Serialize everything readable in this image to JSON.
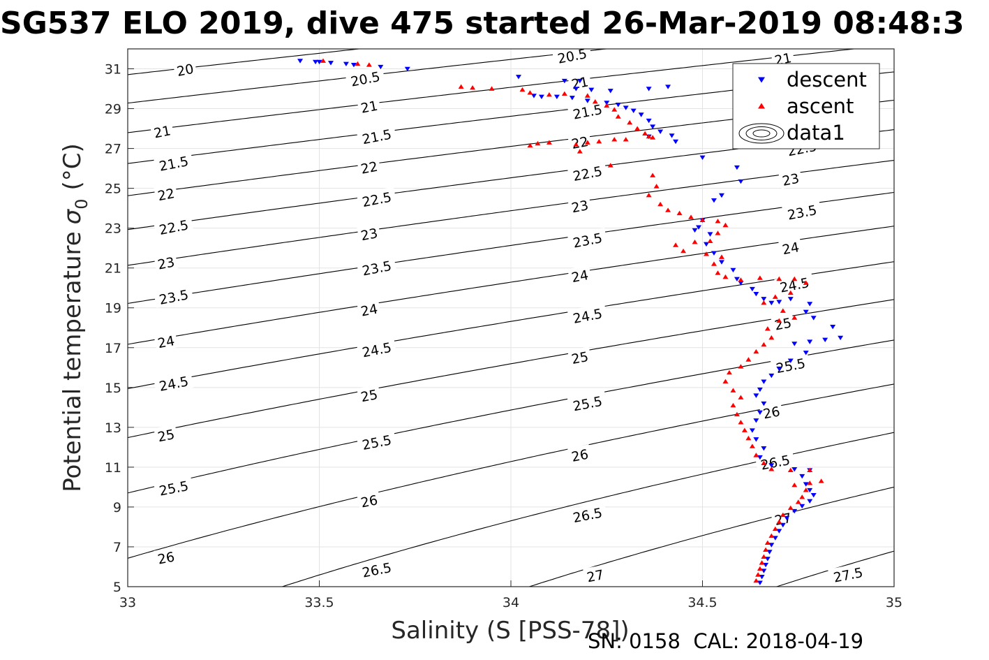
{
  "chart_data": {
    "type": "scatter",
    "title": "SG537 ELO 2019, dive 475 started 26-Mar-2019 08:48:3",
    "xlabel": "Salinity (S [PSS-78])",
    "ylabel": "Potential temperature",
    "ylabel_symbol": "σ",
    "ylabel_subscript": "0",
    "ylabel_unit": "(°C)",
    "footer": "SN: 0158  CAL: 2018-04-19",
    "xlim": [
      33,
      35
    ],
    "ylim": [
      5,
      32
    ],
    "x_ticks": [
      33,
      33.5,
      34,
      34.5,
      35
    ],
    "x_tick_labels": [
      "33",
      "33.5",
      "34",
      "34.5",
      "35"
    ],
    "y_ticks": [
      5,
      7,
      9,
      11,
      13,
      15,
      17,
      19,
      21,
      23,
      25,
      27,
      29,
      31
    ],
    "y_tick_labels": [
      "5",
      "7",
      "9",
      "11",
      "13",
      "15",
      "17",
      "19",
      "21",
      "23",
      "25",
      "27",
      "29",
      "31"
    ],
    "grid": true,
    "legend": {
      "placement": "top-right",
      "entries": [
        {
          "name": "descent",
          "marker": "triangle-down",
          "color": "#0000ff"
        },
        {
          "name": "ascent",
          "marker": "triangle-up",
          "color": "#ff0000"
        },
        {
          "name": "data1",
          "marker": "contour",
          "color": "#000000"
        }
      ]
    },
    "contours": {
      "levels": [
        20,
        20.5,
        21,
        21.5,
        22,
        22.5,
        23,
        23.5,
        24,
        24.5,
        25,
        25.5,
        26,
        26.5,
        27,
        27.5
      ],
      "level_labels": [
        "20",
        "20.5",
        "21",
        "21.5",
        "22",
        "22.5",
        "23",
        "23.5",
        "24",
        "24.5",
        "25",
        "25.5",
        "26",
        "26.5",
        "27",
        "27.5"
      ],
      "label_positions": [
        {
          "level": "20",
          "s": 33.15,
          "t": 30.95
        },
        {
          "level": "21",
          "s": 33.09,
          "t": 27.85
        },
        {
          "level": "21.5",
          "s": 33.12,
          "t": 26.25
        },
        {
          "level": "22",
          "s": 33.1,
          "t": 24.7
        },
        {
          "level": "22.5",
          "s": 33.12,
          "t": 23.05
        },
        {
          "level": "23",
          "s": 33.1,
          "t": 21.25
        },
        {
          "level": "23.5",
          "s": 33.12,
          "t": 19.55
        },
        {
          "level": "24",
          "s": 33.1,
          "t": 17.3
        },
        {
          "level": "24.5",
          "s": 33.12,
          "t": 15.2
        },
        {
          "level": "25",
          "s": 33.1,
          "t": 12.6
        },
        {
          "level": "25.5",
          "s": 33.12,
          "t": 9.95
        },
        {
          "level": "26",
          "s": 33.1,
          "t": 6.45
        },
        {
          "level": "20.5",
          "s": 33.62,
          "t": 30.5
        },
        {
          "level": "21",
          "s": 33.63,
          "t": 29.1
        },
        {
          "level": "21.5",
          "s": 33.65,
          "t": 27.6
        },
        {
          "level": "22",
          "s": 33.63,
          "t": 26.05
        },
        {
          "level": "22.5",
          "s": 33.65,
          "t": 24.45
        },
        {
          "level": "23",
          "s": 33.63,
          "t": 22.7
        },
        {
          "level": "23.5",
          "s": 33.65,
          "t": 21.0
        },
        {
          "level": "24",
          "s": 33.63,
          "t": 18.9
        },
        {
          "level": "24.5",
          "s": 33.65,
          "t": 16.9
        },
        {
          "level": "25",
          "s": 33.63,
          "t": 14.6
        },
        {
          "level": "25.5",
          "s": 33.65,
          "t": 12.25
        },
        {
          "level": "26",
          "s": 33.63,
          "t": 9.3
        },
        {
          "level": "26.5",
          "s": 33.65,
          "t": 5.85
        },
        {
          "level": "20.5",
          "s": 34.16,
          "t": 31.65
        },
        {
          "level": "21",
          "s": 34.18,
          "t": 30.3
        },
        {
          "level": "21.5",
          "s": 34.2,
          "t": 28.85
        },
        {
          "level": "22",
          "s": 34.18,
          "t": 27.3
        },
        {
          "level": "22.5",
          "s": 34.2,
          "t": 25.75
        },
        {
          "level": "23",
          "s": 34.18,
          "t": 24.1
        },
        {
          "level": "23.5",
          "s": 34.2,
          "t": 22.4
        },
        {
          "level": "24",
          "s": 34.18,
          "t": 20.6
        },
        {
          "level": "24.5",
          "s": 34.2,
          "t": 18.6
        },
        {
          "level": "25",
          "s": 34.18,
          "t": 16.5
        },
        {
          "level": "25.5",
          "s": 34.2,
          "t": 14.2
        },
        {
          "level": "26",
          "s": 34.18,
          "t": 11.6
        },
        {
          "level": "26.5",
          "s": 34.2,
          "t": 8.6
        },
        {
          "level": "27",
          "s": 34.22,
          "t": 5.55
        },
        {
          "level": "21",
          "s": 34.71,
          "t": 31.5
        },
        {
          "level": "22.5",
          "s": 34.76,
          "t": 27.0
        },
        {
          "level": "23",
          "s": 34.73,
          "t": 25.45
        },
        {
          "level": "23.5",
          "s": 34.76,
          "t": 23.8
        },
        {
          "level": "24",
          "s": 34.73,
          "t": 22.0
        },
        {
          "level": "24.5",
          "s": 34.74,
          "t": 20.15
        },
        {
          "level": "25",
          "s": 34.71,
          "t": 18.2
        },
        {
          "level": "25.5",
          "s": 34.73,
          "t": 16.1
        },
        {
          "level": "26",
          "s": 34.68,
          "t": 13.75
        },
        {
          "level": "26.5",
          "s": 34.69,
          "t": 11.25
        },
        {
          "level": "27",
          "s": 34.71,
          "t": 8.4
        },
        {
          "level": "27.5",
          "s": 34.88,
          "t": 5.6
        }
      ]
    },
    "series": [
      {
        "name": "descent",
        "marker": "triangle-down",
        "color": "#0000ff",
        "points": [
          [
            33.45,
            31.4
          ],
          [
            33.49,
            31.35
          ],
          [
            33.5,
            31.35
          ],
          [
            33.53,
            31.3
          ],
          [
            33.57,
            31.25
          ],
          [
            33.59,
            31.2
          ],
          [
            33.66,
            31.1
          ],
          [
            33.73,
            31.0
          ],
          [
            34.02,
            30.6
          ],
          [
            34.14,
            30.4
          ],
          [
            34.18,
            30.4
          ],
          [
            34.17,
            30.0
          ],
          [
            34.21,
            29.95
          ],
          [
            34.26,
            29.9
          ],
          [
            34.36,
            30.0
          ],
          [
            34.41,
            30.1
          ],
          [
            34.06,
            29.65
          ],
          [
            34.08,
            29.6
          ],
          [
            34.12,
            29.6
          ],
          [
            34.16,
            29.55
          ],
          [
            34.2,
            29.4
          ],
          [
            34.25,
            29.3
          ],
          [
            34.28,
            29.2
          ],
          [
            34.3,
            29.05
          ],
          [
            34.32,
            28.9
          ],
          [
            34.34,
            28.7
          ],
          [
            34.36,
            28.4
          ],
          [
            34.37,
            28.1
          ],
          [
            34.39,
            27.85
          ],
          [
            34.42,
            27.65
          ],
          [
            34.36,
            27.6
          ],
          [
            34.43,
            27.35
          ],
          [
            34.5,
            26.55
          ],
          [
            34.59,
            26.05
          ],
          [
            34.6,
            25.35
          ],
          [
            34.55,
            24.65
          ],
          [
            34.53,
            24.4
          ],
          [
            34.5,
            23.4
          ],
          [
            34.49,
            23.05
          ],
          [
            34.48,
            22.9
          ],
          [
            34.52,
            22.7
          ],
          [
            34.51,
            22.2
          ],
          [
            34.53,
            21.75
          ],
          [
            34.55,
            21.3
          ],
          [
            34.58,
            20.9
          ],
          [
            34.59,
            20.45
          ],
          [
            34.6,
            20.25
          ],
          [
            34.63,
            19.95
          ],
          [
            34.64,
            19.7
          ],
          [
            34.66,
            19.45
          ],
          [
            34.68,
            19.25
          ],
          [
            34.7,
            19.3
          ],
          [
            34.73,
            19.45
          ],
          [
            34.77,
            18.8
          ],
          [
            34.79,
            18.5
          ],
          [
            34.78,
            19.2
          ],
          [
            34.84,
            18.05
          ],
          [
            34.86,
            17.5
          ],
          [
            34.82,
            17.4
          ],
          [
            34.78,
            17.3
          ],
          [
            34.74,
            17.2
          ],
          [
            34.77,
            16.75
          ],
          [
            34.73,
            16.35
          ],
          [
            34.7,
            15.95
          ],
          [
            34.68,
            15.6
          ],
          [
            34.66,
            15.3
          ],
          [
            34.65,
            14.9
          ],
          [
            34.64,
            14.6
          ],
          [
            34.66,
            14.2
          ],
          [
            34.65,
            13.75
          ],
          [
            34.64,
            13.35
          ],
          [
            34.63,
            12.85
          ],
          [
            34.64,
            12.4
          ],
          [
            34.66,
            11.95
          ],
          [
            34.65,
            11.5
          ],
          [
            34.68,
            11.1
          ],
          [
            34.74,
            10.9
          ],
          [
            34.78,
            10.85
          ],
          [
            34.76,
            10.55
          ],
          [
            34.77,
            10.15
          ],
          [
            34.78,
            9.85
          ],
          [
            34.79,
            9.6
          ],
          [
            34.78,
            9.3
          ],
          [
            34.76,
            9.05
          ],
          [
            34.74,
            8.8
          ],
          [
            34.72,
            8.45
          ],
          [
            34.71,
            8.1
          ],
          [
            34.7,
            7.8
          ],
          [
            34.69,
            7.45
          ],
          [
            34.68,
            7.1
          ],
          [
            34.675,
            6.75
          ],
          [
            34.67,
            6.4
          ],
          [
            34.665,
            6.1
          ],
          [
            34.66,
            5.8
          ],
          [
            34.655,
            5.5
          ],
          [
            34.65,
            5.2
          ]
        ]
      },
      {
        "name": "ascent",
        "marker": "triangle-up",
        "color": "#ff0000",
        "points": [
          [
            33.51,
            31.4
          ],
          [
            33.6,
            31.25
          ],
          [
            33.63,
            31.2
          ],
          [
            33.87,
            30.1
          ],
          [
            33.9,
            30.05
          ],
          [
            33.95,
            30.0
          ],
          [
            34.03,
            29.95
          ],
          [
            34.05,
            29.8
          ],
          [
            34.1,
            29.7
          ],
          [
            34.14,
            29.75
          ],
          [
            34.2,
            29.65
          ],
          [
            34.22,
            29.35
          ],
          [
            34.25,
            29.15
          ],
          [
            34.27,
            28.95
          ],
          [
            34.28,
            28.6
          ],
          [
            34.31,
            28.3
          ],
          [
            34.33,
            28.0
          ],
          [
            34.35,
            27.75
          ],
          [
            34.36,
            27.6
          ],
          [
            34.37,
            27.55
          ],
          [
            34.3,
            27.45
          ],
          [
            34.27,
            27.45
          ],
          [
            34.23,
            27.35
          ],
          [
            34.2,
            27.3
          ],
          [
            34.17,
            27.2
          ],
          [
            34.1,
            27.3
          ],
          [
            34.07,
            27.25
          ],
          [
            34.05,
            27.15
          ],
          [
            34.18,
            26.85
          ],
          [
            34.26,
            26.15
          ],
          [
            34.37,
            25.65
          ],
          [
            34.38,
            25.1
          ],
          [
            34.36,
            24.65
          ],
          [
            34.39,
            24.2
          ],
          [
            34.41,
            23.9
          ],
          [
            34.44,
            23.75
          ],
          [
            34.47,
            23.55
          ],
          [
            34.5,
            23.4
          ],
          [
            34.54,
            23.35
          ],
          [
            34.56,
            23.15
          ],
          [
            34.54,
            22.75
          ],
          [
            34.52,
            22.35
          ],
          [
            34.48,
            22.3
          ],
          [
            34.43,
            22.15
          ],
          [
            34.45,
            21.85
          ],
          [
            34.51,
            21.7
          ],
          [
            34.55,
            21.55
          ],
          [
            34.53,
            21.2
          ],
          [
            34.54,
            20.75
          ],
          [
            34.56,
            20.55
          ],
          [
            34.6,
            20.4
          ],
          [
            34.65,
            20.5
          ],
          [
            34.7,
            20.45
          ],
          [
            34.74,
            20.45
          ],
          [
            34.77,
            20.25
          ],
          [
            34.73,
            19.75
          ],
          [
            34.69,
            19.55
          ],
          [
            34.66,
            19.25
          ],
          [
            34.71,
            18.85
          ],
          [
            34.74,
            18.5
          ],
          [
            34.7,
            18.35
          ],
          [
            34.67,
            17.95
          ],
          [
            34.68,
            17.5
          ],
          [
            34.66,
            17.15
          ],
          [
            34.64,
            16.8
          ],
          [
            34.62,
            16.4
          ],
          [
            34.6,
            16.05
          ],
          [
            34.57,
            15.75
          ],
          [
            34.56,
            15.3
          ],
          [
            34.58,
            14.85
          ],
          [
            34.6,
            14.5
          ],
          [
            34.58,
            14.1
          ],
          [
            34.59,
            13.65
          ],
          [
            34.6,
            13.25
          ],
          [
            34.61,
            12.85
          ],
          [
            34.62,
            12.45
          ],
          [
            34.63,
            12.05
          ],
          [
            34.64,
            11.6
          ],
          [
            34.66,
            11.2
          ],
          [
            34.68,
            10.9
          ],
          [
            34.73,
            10.85
          ],
          [
            34.78,
            10.85
          ],
          [
            34.81,
            10.3
          ],
          [
            34.78,
            10.2
          ],
          [
            34.74,
            10.1
          ],
          [
            34.77,
            9.85
          ],
          [
            34.76,
            9.5
          ],
          [
            34.75,
            9.25
          ],
          [
            34.73,
            8.95
          ],
          [
            34.71,
            8.6
          ],
          [
            34.7,
            8.25
          ],
          [
            34.69,
            7.9
          ],
          [
            34.68,
            7.55
          ],
          [
            34.67,
            7.2
          ],
          [
            34.665,
            6.85
          ],
          [
            34.66,
            6.5
          ],
          [
            34.655,
            6.2
          ],
          [
            34.65,
            5.9
          ],
          [
            34.645,
            5.6
          ],
          [
            34.64,
            5.3
          ]
        ]
      }
    ]
  }
}
